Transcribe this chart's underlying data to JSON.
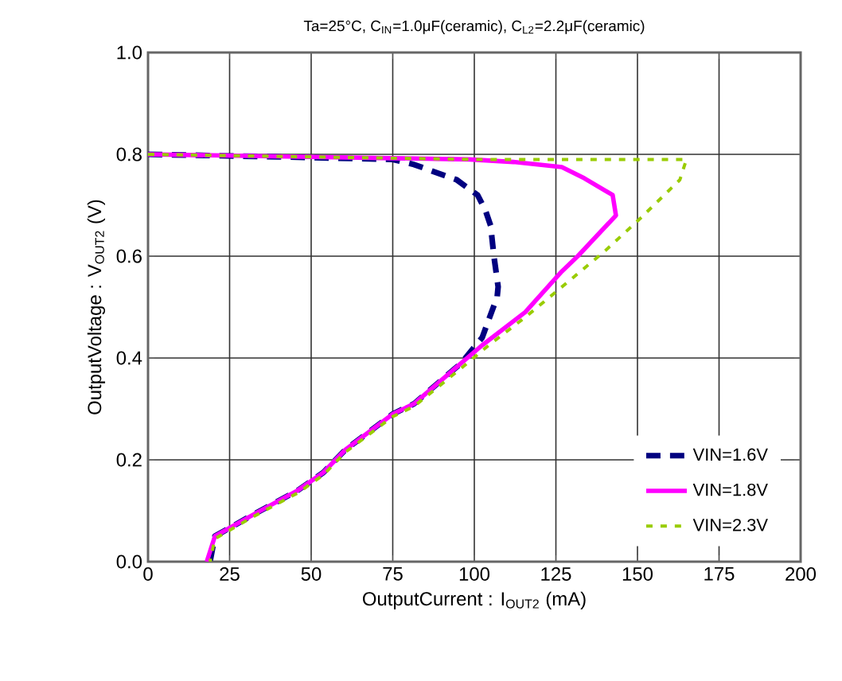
{
  "chart_data": {
    "type": "line",
    "title": "Ta=25°C, C$_{IN}$=1.0μF(ceramic), C$_{L2}$=2.2μF(ceramic)",
    "xlabel": "OutputCurrent : I$_{OUT2}$ (mA)",
    "ylabel": "OutputVoltage : V$_{OUT2}$ (V)",
    "xlim": [
      0,
      200
    ],
    "ylim": [
      0,
      1
    ],
    "xticks": [
      0,
      25,
      50,
      75,
      100,
      125,
      150,
      175,
      200
    ],
    "yticks": [
      {
        "value": 0,
        "label": "0.0"
      },
      {
        "value": 0.2,
        "label": "0.2"
      },
      {
        "value": 0.4,
        "label": "0.4"
      },
      {
        "value": 0.6,
        "label": "0.6"
      },
      {
        "value": 0.8,
        "label": "0.8"
      },
      {
        "value": 1,
        "label": "1.0"
      }
    ],
    "grid": true,
    "legend": "bottom right",
    "marker": "none",
    "series": [
      {
        "name": "VIN=1.6V",
        "color": "#000080",
        "line_style": "dashed",
        "x": [
          0,
          40,
          75,
          81.5,
          94.6,
          101,
          103.4,
          105,
          106,
          107.3,
          107,
          102.4,
          96,
          81.5,
          75,
          60.5,
          53.7,
          45.9,
          32.7,
          20.5,
          19
        ],
        "values": [
          0.8,
          0.795,
          0.79,
          0.78,
          0.75,
          0.72,
          0.69,
          0.66,
          0.6,
          0.54,
          0.52,
          0.44,
          0.39,
          0.31,
          0.29,
          0.22,
          0.175,
          0.14,
          0.094,
          0.05,
          0
        ]
      },
      {
        "name": "VIN=1.8V",
        "color": "#ff00ff",
        "line_style": "solid",
        "x": [
          0,
          50,
          98.5,
          112,
          126.8,
          133.7,
          142.4,
          143.4,
          131.7,
          126.8,
          115.6,
          102.4,
          96,
          81.5,
          75,
          60.5,
          53.7,
          45.9,
          32.7,
          20.5,
          18
        ],
        "values": [
          0.8,
          0.795,
          0.79,
          0.785,
          0.775,
          0.753,
          0.72,
          0.68,
          0.6,
          0.57,
          0.49,
          0.425,
          0.39,
          0.31,
          0.29,
          0.22,
          0.175,
          0.14,
          0.094,
          0.05,
          0
        ]
      },
      {
        "name": "VIN=2.3V",
        "color": "#99cc00",
        "line_style": "dotted",
        "x": [
          0,
          100,
          165,
          163,
          151,
          140,
          128.8,
          115.6,
          104.4,
          96,
          81.5,
          75,
          60.5,
          53.7,
          45.9,
          32.7,
          20.5,
          19
        ],
        "values": [
          0.8,
          0.79,
          0.79,
          0.75,
          0.675,
          0.61,
          0.55,
          0.48,
          0.425,
          0.38,
          0.305,
          0.285,
          0.215,
          0.17,
          0.135,
          0.09,
          0.045,
          0
        ]
      }
    ]
  }
}
